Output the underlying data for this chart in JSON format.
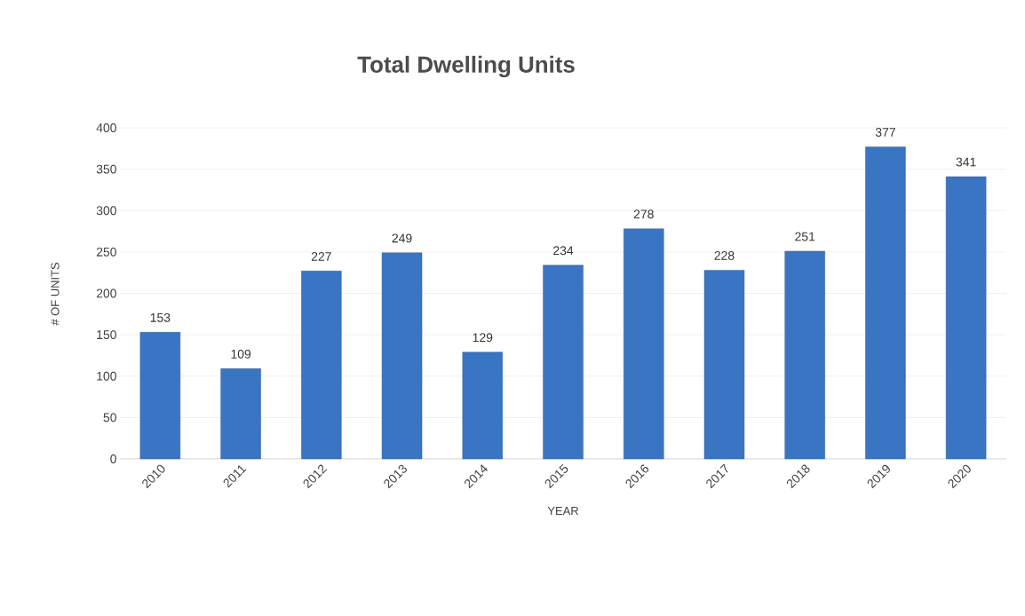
{
  "chart_data": {
    "type": "bar",
    "title": "Total Dwelling Units",
    "xlabel": "YEAR",
    "ylabel": "# OF UNITS",
    "categories": [
      "2010",
      "2011",
      "2012",
      "2013",
      "2014",
      "2015",
      "2016",
      "2017",
      "2018",
      "2019",
      "2020"
    ],
    "values": [
      153,
      109,
      227,
      249,
      129,
      234,
      278,
      228,
      251,
      377,
      341
    ],
    "color": "#3a75c4",
    "ylim": [
      0,
      400
    ],
    "yticks": [
      0,
      50,
      100,
      150,
      200,
      250,
      300,
      350,
      400
    ],
    "grid": "y",
    "data_labels": true
  }
}
